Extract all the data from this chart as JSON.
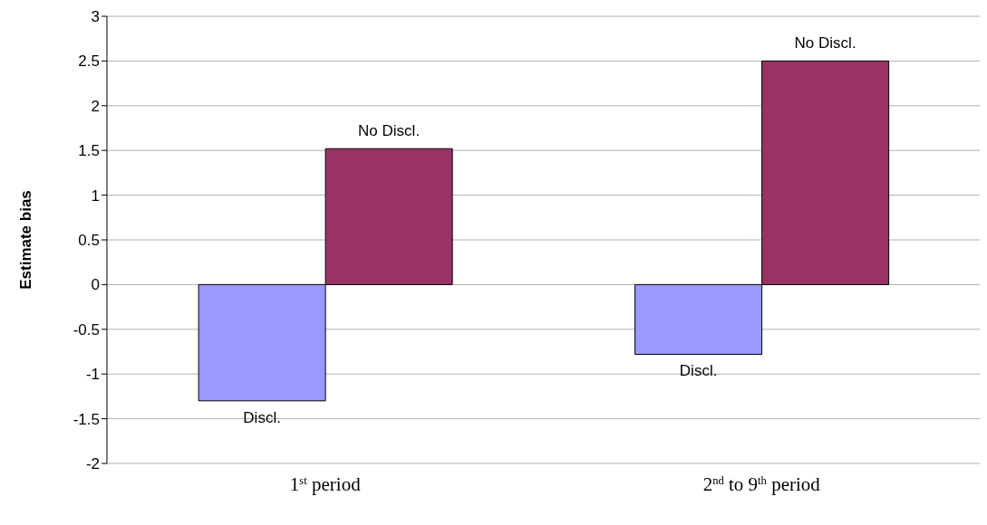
{
  "chart_data": {
    "type": "bar",
    "ylabel": "Estimate bias",
    "categories": [
      "1$^{st}$ period",
      "2$^{nd}$ to 9$^{th}$ period"
    ],
    "series": [
      {
        "name": "Discl.",
        "color": "#9999ff",
        "values": [
          -1.3,
          -0.78
        ]
      },
      {
        "name": "No Discl.",
        "color": "#993366",
        "values": [
          1.52,
          2.5
        ]
      }
    ],
    "ylim": [
      -2,
      3
    ],
    "yticks": [
      -2,
      -1.5,
      -1,
      -0.5,
      0,
      0.5,
      1,
      1.5,
      2,
      2.5,
      3
    ],
    "grid": "y",
    "legend": false
  }
}
